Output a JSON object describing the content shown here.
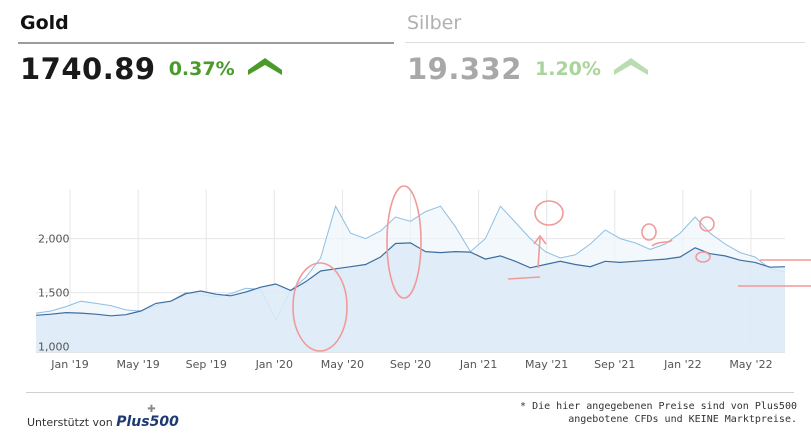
{
  "tabs": [
    {
      "name": "Gold",
      "price": "1740.89",
      "change": "0.37%",
      "active": true,
      "arrow_color": "#4a9a2c"
    },
    {
      "name": "Silber",
      "price": "19.332",
      "change": "1.20%",
      "active": false,
      "arrow_color": "#b9ddb0"
    }
  ],
  "chart_data": {
    "type": "area",
    "title": "",
    "xlabel": "",
    "ylabel": "",
    "x_ticks": [
      "Jan '19",
      "May '19",
      "Sep '19",
      "Jan '20",
      "May '20",
      "Sep '20",
      "Jan '21",
      "May '21",
      "Sep '21",
      "Jan '22",
      "May '22"
    ],
    "y_ticks": [
      1000,
      1500,
      2000
    ],
    "y_tick_labels": [
      "1,000",
      "1,500",
      "2,000"
    ],
    "ylim": [
      950,
      2450
    ],
    "x_range_months": [
      "2018-11",
      "2022-07"
    ],
    "grid": true,
    "colors": {
      "main_line": "#3d6e9e",
      "main_fill": "#dcebf7",
      "secondary_line": "#8fbfe3",
      "secondary_fill": "#eef5fb",
      "annotation": "#f19a9a"
    },
    "series": [
      {
        "values": [
          [
            0,
            1290
          ],
          [
            1,
            1300
          ],
          [
            2,
            1315
          ],
          [
            3,
            1310
          ],
          [
            4,
            1300
          ],
          [
            5,
            1285
          ],
          [
            6,
            1295
          ],
          [
            7,
            1330
          ],
          [
            8,
            1400
          ],
          [
            9,
            1420
          ],
          [
            10,
            1490
          ],
          [
            11,
            1515
          ],
          [
            12,
            1485
          ],
          [
            13,
            1470
          ],
          [
            14,
            1505
          ],
          [
            15,
            1550
          ],
          [
            16,
            1580
          ],
          [
            17,
            1520
          ],
          [
            18,
            1600
          ],
          [
            19,
            1700
          ],
          [
            20,
            1720
          ],
          [
            21,
            1740
          ],
          [
            22,
            1760
          ],
          [
            23,
            1830
          ],
          [
            24,
            1955
          ],
          [
            25,
            1960
          ],
          [
            26,
            1880
          ],
          [
            27,
            1870
          ],
          [
            28,
            1880
          ],
          [
            29,
            1875
          ],
          [
            30,
            1810
          ],
          [
            31,
            1840
          ],
          [
            32,
            1790
          ],
          [
            33,
            1730
          ],
          [
            34,
            1760
          ],
          [
            35,
            1790
          ],
          [
            36,
            1760
          ],
          [
            37,
            1740
          ],
          [
            38,
            1790
          ],
          [
            39,
            1780
          ],
          [
            40,
            1790
          ],
          [
            41,
            1800
          ],
          [
            42,
            1810
          ],
          [
            43,
            1830
          ],
          [
            44,
            1915
          ],
          [
            45,
            1860
          ],
          [
            46,
            1840
          ],
          [
            47,
            1800
          ],
          [
            48,
            1780
          ],
          [
            49,
            1735
          ],
          [
            50,
            1740
          ]
        ]
      },
      {
        "values": [
          [
            0,
            1310
          ],
          [
            1,
            1330
          ],
          [
            2,
            1370
          ],
          [
            3,
            1420
          ],
          [
            4,
            1400
          ],
          [
            5,
            1380
          ],
          [
            6,
            1340
          ],
          [
            7,
            1330
          ],
          [
            8,
            1380
          ],
          [
            9,
            1420
          ],
          [
            10,
            1500
          ],
          [
            11,
            1480
          ],
          [
            12,
            1460
          ],
          [
            13,
            1490
          ],
          [
            14,
            1540
          ],
          [
            15,
            1530
          ],
          [
            16,
            1250
          ],
          [
            17,
            1520
          ],
          [
            18,
            1640
          ],
          [
            19,
            1820
          ],
          [
            20,
            2300
          ],
          [
            21,
            2050
          ],
          [
            22,
            2000
          ],
          [
            23,
            2070
          ],
          [
            24,
            2200
          ],
          [
            25,
            2160
          ],
          [
            26,
            2250
          ],
          [
            27,
            2300
          ],
          [
            28,
            2110
          ],
          [
            29,
            1880
          ],
          [
            30,
            2000
          ],
          [
            31,
            2300
          ],
          [
            32,
            2150
          ],
          [
            33,
            2000
          ],
          [
            34,
            1880
          ],
          [
            35,
            1820
          ],
          [
            36,
            1850
          ],
          [
            37,
            1950
          ],
          [
            38,
            2080
          ],
          [
            39,
            2000
          ],
          [
            40,
            1960
          ],
          [
            41,
            1900
          ],
          [
            42,
            1950
          ],
          [
            43,
            2050
          ],
          [
            44,
            2200
          ],
          [
            45,
            2050
          ],
          [
            46,
            1950
          ],
          [
            47,
            1870
          ],
          [
            48,
            1830
          ],
          [
            49,
            1720
          ],
          [
            50,
            1690
          ]
        ]
      }
    ],
    "legend": "none"
  },
  "footer": {
    "supported_by": "Unterstützt von",
    "logo_text": "Plus500",
    "disclaimer_line1": "* Die hier angegebenen Preise sind von Plus500",
    "disclaimer_line2": "angebotene CFDs und KEINE Marktpreise."
  }
}
